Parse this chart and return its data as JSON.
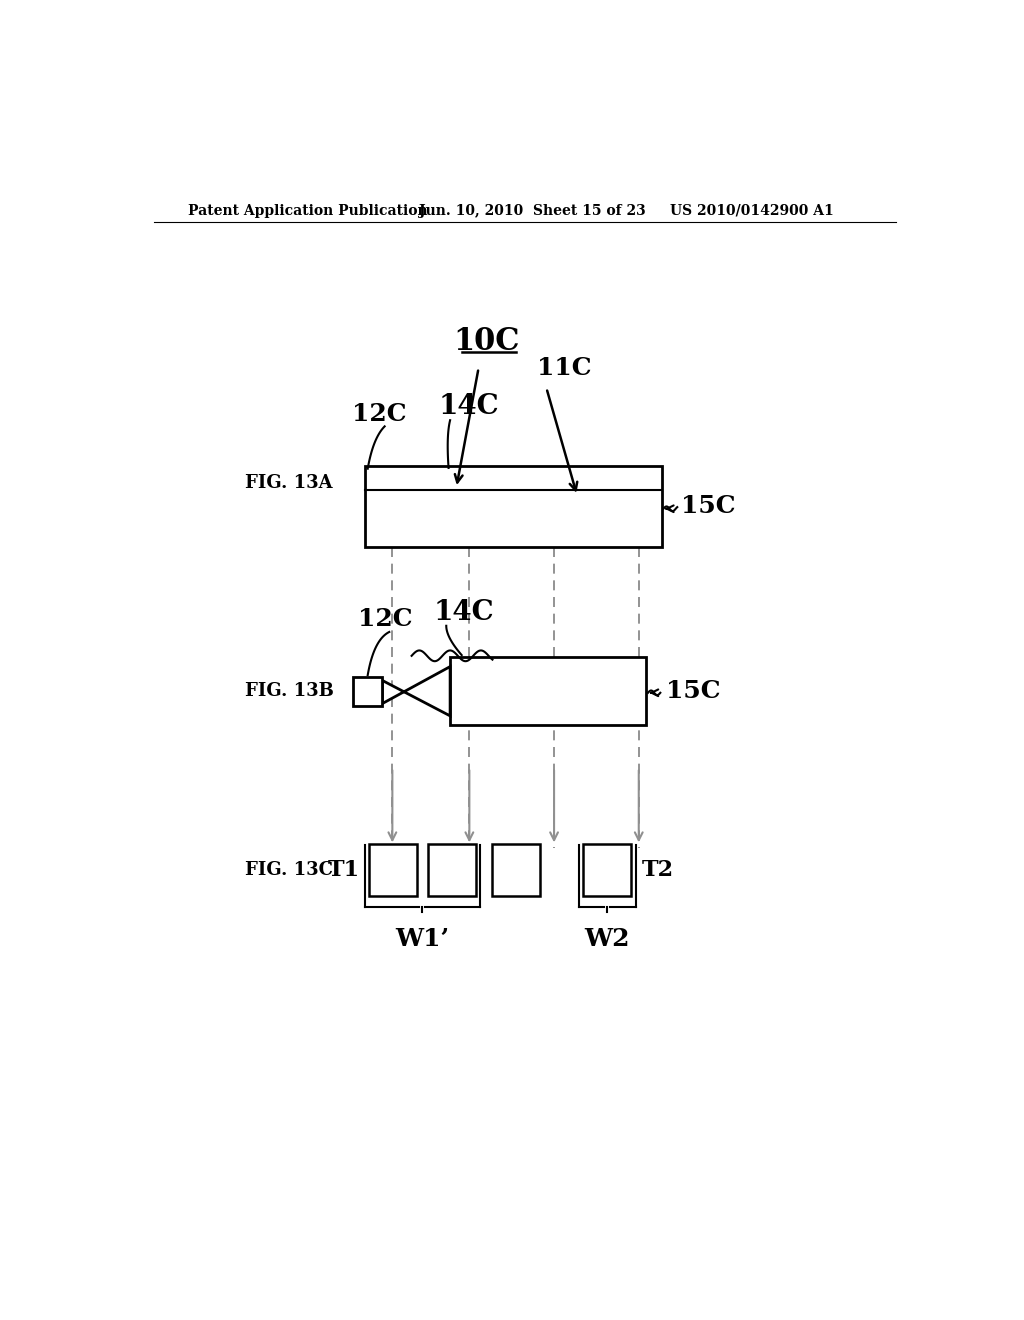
{
  "bg_color": "#ffffff",
  "header_text": "Patent Application Publication",
  "header_date": "Jun. 10, 2010  Sheet 15 of 23",
  "header_patent": "US 2010/0142900 A1",
  "fig13a_label": "FIG. 13A",
  "fig13b_label": "FIG. 13B",
  "fig13c_label": "FIG. 13C",
  "label_10C": "10C",
  "label_11C": "11C",
  "label_12C_top": "12C",
  "label_14C_top": "14C",
  "label_15C_top": "15C",
  "label_12C_mid": "12C",
  "label_14C_mid": "14C",
  "label_15C_mid": "15C",
  "label_T1": "T1",
  "label_T2": "T2",
  "label_W1": "W1’",
  "label_W2": "W2",
  "line_color": "#000000",
  "arrow_color": "#909090",
  "dashed_color": "#808080"
}
